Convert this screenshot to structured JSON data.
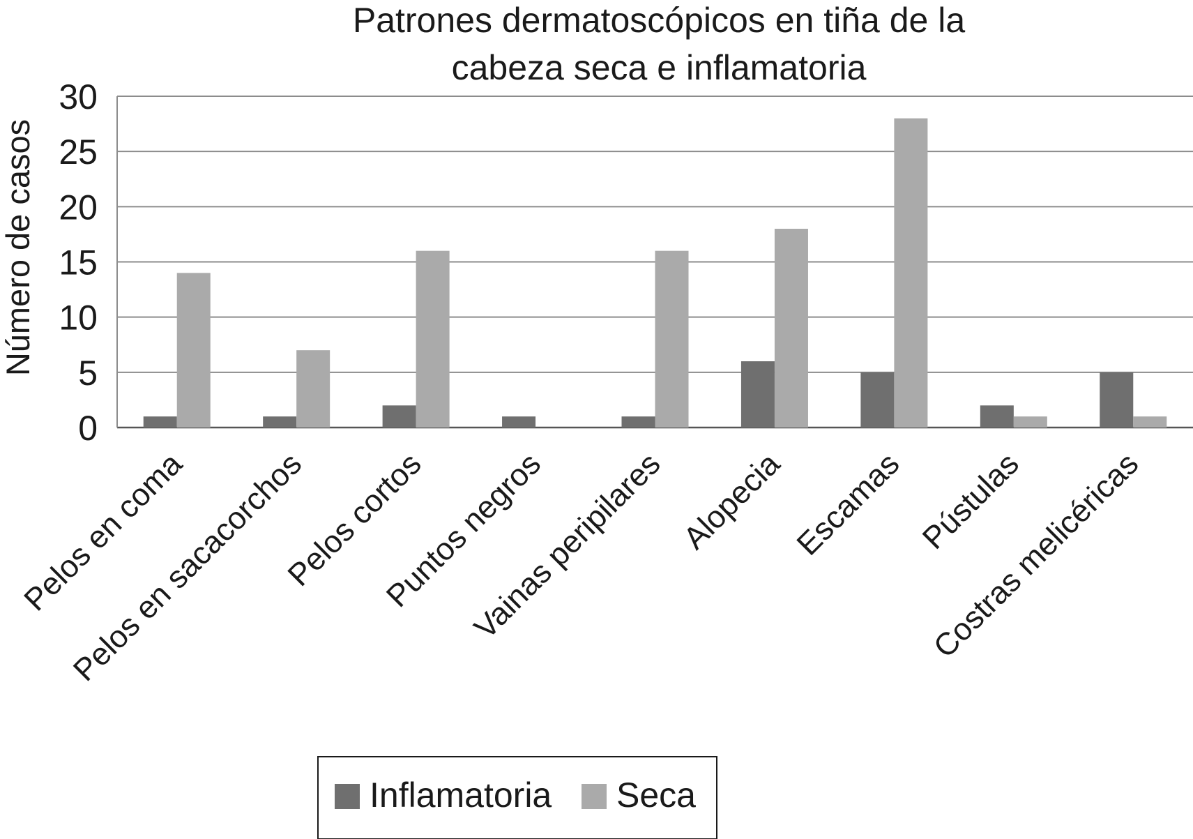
{
  "chart_data": {
    "type": "bar",
    "title_lines": [
      "Patrones dermatoscópicos en tiña de la",
      "cabeza seca e inflamatoria"
    ],
    "ylabel": "Número de casos",
    "xlabel": "",
    "ylim": [
      0,
      30
    ],
    "yticks": [
      0,
      5,
      10,
      15,
      20,
      25,
      30
    ],
    "grid": true,
    "legend_position": "bottom",
    "categories": [
      "Pelos en coma",
      "Pelos en sacacorchos",
      "Pelos cortos",
      "Puntos negros",
      "Vainas peripilares",
      "Alopecia",
      "Escamas",
      "Pústulas",
      "Costras melicéricas"
    ],
    "series": [
      {
        "name": "Inflamatoria",
        "color": "#6f6f6f",
        "values": [
          1,
          1,
          2,
          1,
          1,
          6,
          5,
          2,
          5
        ]
      },
      {
        "name": "Seca",
        "color": "#aaaaaa",
        "values": [
          14,
          7,
          16,
          0,
          16,
          18,
          28,
          1,
          1
        ]
      }
    ]
  }
}
